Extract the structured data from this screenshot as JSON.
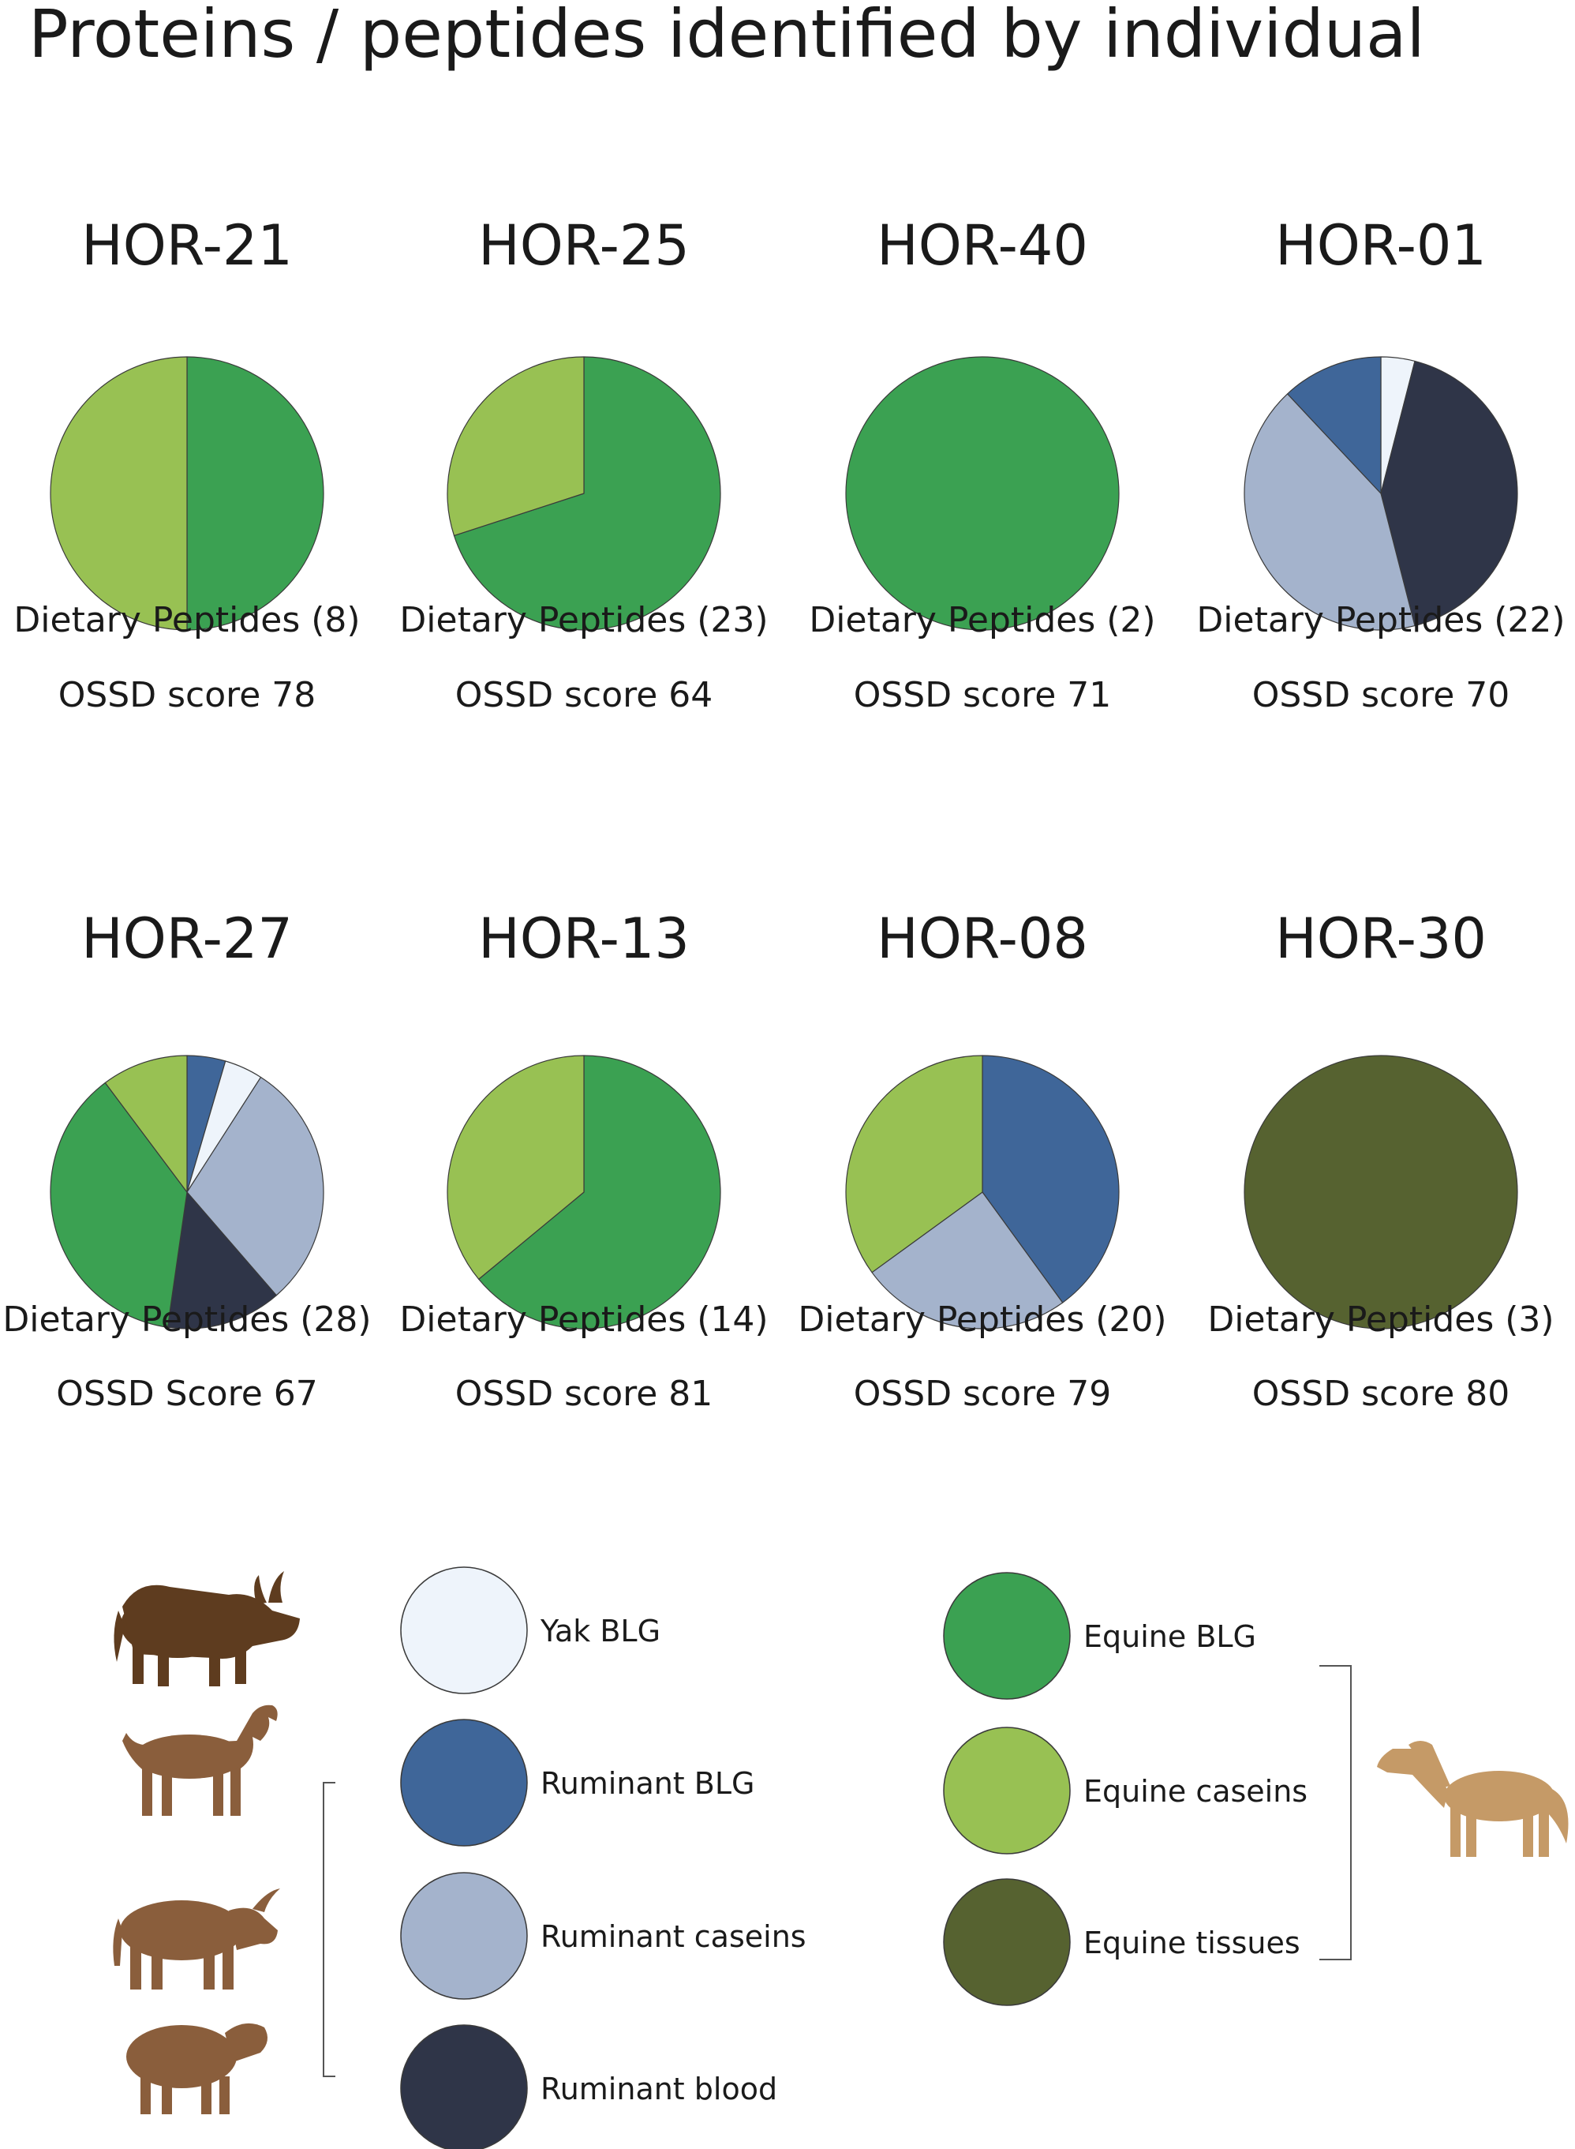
{
  "title": "Proteins / peptides identified by individual",
  "colors": {
    "Yak BLG": "#eef4fb",
    "Ruminant BLG": "#3f6699",
    "Ruminant caseins": "#a4b3cc",
    "Ruminant blood": "#2f3548",
    "Equine BLG": "#3ba152",
    "Equine caseins": "#98c153",
    "Equine tissues": "#566230"
  },
  "chart_data": [
    {
      "type": "pie",
      "title": "HOR-21",
      "peptides_label": "Dietary Peptides (8)",
      "score_label": "OSSD score 78",
      "slices": [
        {
          "category": "Equine BLG",
          "value": 50
        },
        {
          "category": "Equine caseins",
          "value": 50
        }
      ]
    },
    {
      "type": "pie",
      "title": "HOR-25",
      "peptides_label": "Dietary Peptides (23)",
      "score_label": "OSSD score 64",
      "slices": [
        {
          "category": "Equine BLG",
          "value": 70
        },
        {
          "category": "Equine caseins",
          "value": 30
        }
      ]
    },
    {
      "type": "pie",
      "title": "HOR-40",
      "peptides_label": "Dietary Peptides (2)",
      "score_label": "OSSD score 71",
      "slices": [
        {
          "category": "Equine BLG",
          "value": 100
        }
      ]
    },
    {
      "type": "pie",
      "title": "HOR-01",
      "peptides_label": "Dietary Peptides (22)",
      "score_label": "OSSD score 70",
      "slices": [
        {
          "category": "Yak BLG",
          "value": 4
        },
        {
          "category": "Ruminant blood",
          "value": 42
        },
        {
          "category": "Ruminant caseins",
          "value": 42
        },
        {
          "category": "Ruminant BLG",
          "value": 12
        }
      ]
    },
    {
      "type": "pie",
      "title": "HOR-27",
      "peptides_label": "Dietary Peptides (28)",
      "score_label": "OSSD Score 67",
      "slices": [
        {
          "category": "Ruminant BLG",
          "value": 4
        },
        {
          "category": "Yak BLG",
          "value": 4
        },
        {
          "category": "Ruminant caseins",
          "value": 26
        },
        {
          "category": "Ruminant blood",
          "value": 12
        },
        {
          "category": "Equine BLG",
          "value": 33
        },
        {
          "category": "Equine caseins",
          "value": 9
        }
      ]
    },
    {
      "type": "pie",
      "title": "HOR-13",
      "peptides_label": "Dietary Peptides (14)",
      "score_label": "OSSD score 81",
      "slices": [
        {
          "category": "Equine BLG",
          "value": 64
        },
        {
          "category": "Equine caseins",
          "value": 36
        }
      ]
    },
    {
      "type": "pie",
      "title": "HOR-08",
      "peptides_label": "Dietary Peptides (20)",
      "score_label": "OSSD score 79",
      "slices": [
        {
          "category": "Ruminant BLG",
          "value": 40
        },
        {
          "category": "Ruminant caseins",
          "value": 25
        },
        {
          "category": "Equine caseins",
          "value": 35
        }
      ]
    },
    {
      "type": "pie",
      "title": "HOR-30",
      "peptides_label": "Dietary Peptides (3)",
      "score_label": "OSSD score 80",
      "slices": [
        {
          "category": "Equine tissues",
          "value": 100
        }
      ]
    }
  ],
  "legend": {
    "items": [
      {
        "label": "Yak BLG",
        "color": "#eef4fb"
      },
      {
        "label": "Ruminant BLG",
        "color": "#3f6699"
      },
      {
        "label": "Ruminant caseins",
        "color": "#a4b3cc"
      },
      {
        "label": "Ruminant blood",
        "color": "#2f3548"
      },
      {
        "label": "Equine BLG",
        "color": "#3ba152"
      },
      {
        "label": "Equine caseins",
        "color": "#98c153"
      },
      {
        "label": "Equine tissues",
        "color": "#566230"
      }
    ],
    "animal_icons": [
      "yak-icon",
      "goat-icon",
      "cow-icon",
      "sheep-icon",
      "horse-icon"
    ],
    "animal_color_dark": "#5e3c1f",
    "animal_color_ruminant": "#8a5e3c",
    "animal_color_horse": "#c59a67"
  }
}
